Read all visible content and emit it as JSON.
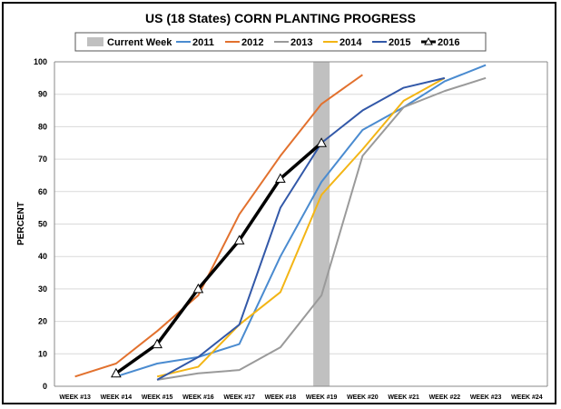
{
  "chart_data": {
    "type": "line",
    "title": "US (18 States) CORN PLANTING PROGRESS",
    "xlabel": "",
    "ylabel": "PERCENT",
    "ylim": [
      0,
      100
    ],
    "yticks": [
      0,
      10,
      20,
      30,
      40,
      50,
      60,
      70,
      80,
      90,
      100
    ],
    "grid": true,
    "legend_position": "top",
    "categories": [
      "WEEK #13",
      "WEEK #14",
      "WEEK #15",
      "WEEK #16",
      "WEEK #17",
      "WEEK #18",
      "WEEK #19",
      "WEEK #20",
      "WEEK #21",
      "WEEK #22",
      "WEEK #23",
      "WEEK #24"
    ],
    "current_week": {
      "name": "Current Week",
      "category": "WEEK #19",
      "color": "#c0c0c0"
    },
    "series": [
      {
        "name": "2011",
        "color": "#4a8bd0",
        "values": [
          null,
          3,
          7,
          9,
          13,
          40,
          63,
          79,
          86,
          94,
          99,
          null
        ]
      },
      {
        "name": "2012",
        "color": "#e2712e",
        "values": [
          3,
          7,
          17,
          28,
          53,
          71,
          87,
          96,
          null,
          null,
          null,
          null
        ]
      },
      {
        "name": "2013",
        "color": "#9a9a9a",
        "values": [
          null,
          null,
          2,
          4,
          5,
          12,
          28,
          71,
          86,
          91,
          95,
          null
        ]
      },
      {
        "name": "2014",
        "color": "#f3b515",
        "values": [
          null,
          null,
          3,
          6,
          19,
          29,
          59,
          73,
          88,
          95,
          null,
          null
        ]
      },
      {
        "name": "2015",
        "color": "#3258a8",
        "values": [
          null,
          null,
          2,
          9,
          19,
          55,
          75,
          85,
          92,
          95,
          null,
          null
        ]
      },
      {
        "name": "2016",
        "color": "#000000",
        "marker": "triangle",
        "values": [
          null,
          4,
          13,
          30,
          45,
          64,
          75,
          null,
          null,
          null,
          null,
          null
        ]
      }
    ]
  }
}
